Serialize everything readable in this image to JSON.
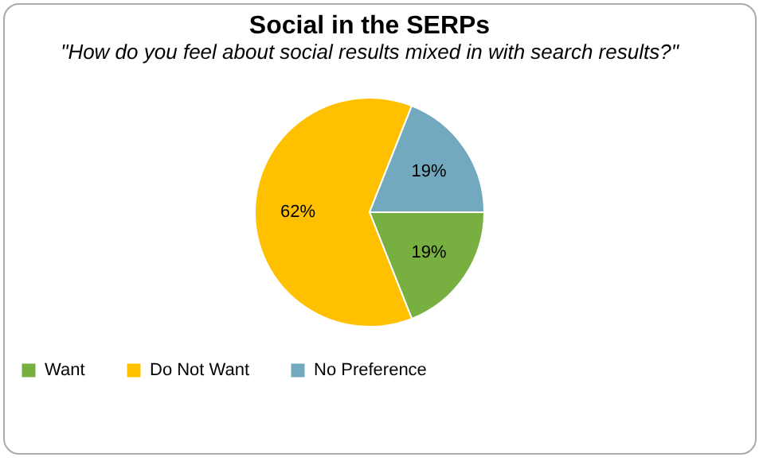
{
  "chart_data": {
    "type": "pie",
    "title": "Social in the SERPs",
    "subtitle": "\"How do you feel about social results mixed in with search results?\"",
    "categories": [
      "Want",
      "Do Not Want",
      "No Preference"
    ],
    "values": [
      19,
      62,
      19
    ],
    "value_labels": [
      "19%",
      "62%",
      "19%"
    ],
    "colors": [
      "#77b041",
      "#ffc000",
      "#72a9bf"
    ],
    "legend": "bottom"
  }
}
